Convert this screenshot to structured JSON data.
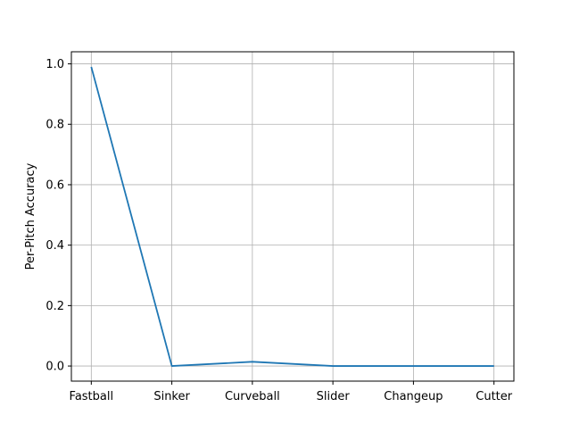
{
  "chart_data": {
    "type": "line",
    "title": "",
    "xlabel": "",
    "ylabel": "Per-Pitch Accuracy",
    "categories": [
      "Fastball",
      "Sinker",
      "Curveball",
      "Slider",
      "Changeup",
      "Cutter"
    ],
    "series": [
      {
        "values": [
          0.99,
          0.0,
          0.014,
          0.0,
          0.0,
          0.0
        ],
        "color": "#1f77b4"
      }
    ],
    "ylim": [
      -0.05,
      1.04
    ],
    "yticks": [
      0.0,
      0.2,
      0.4,
      0.6,
      0.8,
      1.0
    ],
    "ytick_labels": [
      "0.0",
      "0.2",
      "0.4",
      "0.6",
      "0.8",
      "1.0"
    ],
    "grid": true,
    "grid_color": "#b0b0b0",
    "legend": false
  }
}
